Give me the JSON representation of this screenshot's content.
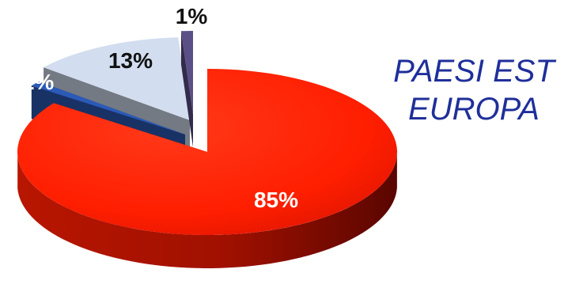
{
  "chart_data": {
    "type": "pie",
    "style": "3d-exploded",
    "title_lines": [
      "PAESI EST",
      "EUROPA"
    ],
    "slices": [
      {
        "label": "85%",
        "value": 85,
        "color": "#ff1e00"
      },
      {
        "label": "1%",
        "value": 1,
        "color": "#2b5ab8"
      },
      {
        "label": "13%",
        "value": 13,
        "color": "#d2ddef"
      },
      {
        "label": "1%",
        "value": 1,
        "color": "#5a4f86"
      }
    ],
    "colors": {
      "title": "#1f2f9a",
      "label_dark": "#111111",
      "label_light": "#ffffff"
    }
  }
}
